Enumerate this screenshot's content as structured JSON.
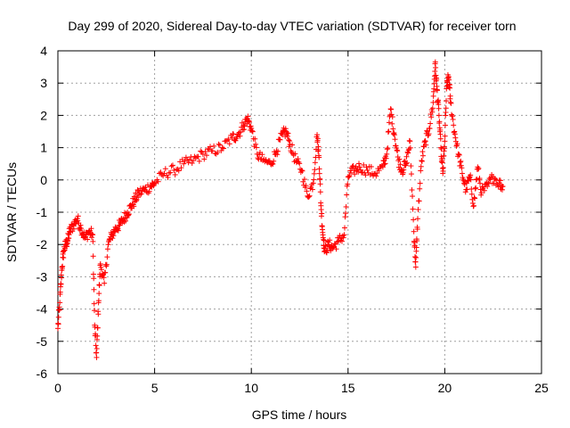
{
  "chart_data": {
    "type": "scatter",
    "title": "Day 299 of 2020, Sidereal Day-to-day VTEC variation (SDTVAR) for receiver torn",
    "xlabel": "GPS time / hours",
    "ylabel": "SDTVAR / TECUs",
    "xlim": [
      0,
      25
    ],
    "ylim": [
      -6,
      4
    ],
    "xticks": [
      0,
      5,
      10,
      15,
      20,
      25
    ],
    "yticks": [
      -6,
      -5,
      -4,
      -3,
      -2,
      -1,
      0,
      1,
      2,
      3,
      4
    ],
    "grid": true,
    "marker": "+",
    "series": [
      {
        "name": "SDTVAR",
        "color": "#ff0000",
        "x": [
          0.0,
          0.1,
          0.2,
          0.3,
          0.4,
          0.5,
          0.6,
          0.8,
          1.0,
          1.2,
          1.4,
          1.6,
          1.8,
          1.9,
          2.0,
          2.1,
          2.2,
          2.4,
          2.6,
          2.8,
          3.0,
          3.2,
          3.4,
          3.6,
          3.8,
          4.0,
          4.2,
          4.5,
          4.8,
          5.0,
          5.5,
          6.0,
          6.5,
          7.0,
          7.5,
          8.0,
          8.5,
          9.0,
          9.3,
          9.6,
          9.8,
          10.0,
          10.3,
          10.6,
          11.0,
          11.3,
          11.6,
          11.8,
          12.0,
          12.3,
          12.6,
          12.9,
          13.2,
          13.4,
          13.5,
          13.6,
          13.7,
          13.8,
          14.0,
          14.2,
          14.5,
          14.8,
          15.0,
          15.3,
          15.6,
          16.0,
          16.4,
          16.8,
          17.0,
          17.2,
          17.4,
          17.6,
          17.8,
          18.0,
          18.2,
          18.4,
          18.5,
          18.6,
          18.8,
          19.0,
          19.2,
          19.4,
          19.5,
          19.6,
          19.7,
          19.8,
          19.9,
          20.0,
          20.1,
          20.2,
          20.3,
          20.5,
          20.7,
          20.9,
          21.1,
          21.3,
          21.5,
          21.7,
          21.9,
          22.2,
          22.5,
          22.8,
          23.0
        ],
        "y": [
          -4.6,
          -3.8,
          -2.8,
          -2.2,
          -2.0,
          -1.9,
          -1.6,
          -1.4,
          -1.2,
          -1.5,
          -1.8,
          -1.6,
          -1.7,
          -4.5,
          -5.5,
          -3.8,
          -2.6,
          -3.2,
          -2.0,
          -1.7,
          -1.5,
          -1.4,
          -1.2,
          -1.0,
          -0.8,
          -0.6,
          -0.4,
          -0.3,
          -0.2,
          -0.1,
          0.2,
          0.3,
          0.5,
          0.6,
          0.8,
          0.9,
          1.0,
          1.3,
          1.4,
          1.7,
          1.9,
          1.6,
          0.8,
          0.6,
          0.5,
          0.9,
          1.4,
          1.5,
          1.1,
          0.6,
          0.3,
          -0.5,
          -0.1,
          1.4,
          0.7,
          -0.8,
          -1.7,
          -2.2,
          -2.0,
          -2.1,
          -1.9,
          -1.7,
          0.1,
          0.3,
          0.4,
          0.3,
          0.2,
          0.4,
          0.8,
          2.2,
          1.4,
          0.6,
          0.3,
          0.5,
          1.2,
          -1.6,
          -2.7,
          -1.2,
          0.6,
          1.2,
          1.6,
          2.4,
          3.6,
          2.8,
          2.0,
          1.0,
          0.2,
          1.2,
          2.9,
          3.2,
          2.4,
          1.5,
          0.8,
          0.2,
          -0.3,
          0.1,
          -0.8,
          0.4,
          -0.4,
          -0.2,
          0.1,
          -0.1,
          -0.2
        ]
      }
    ]
  }
}
